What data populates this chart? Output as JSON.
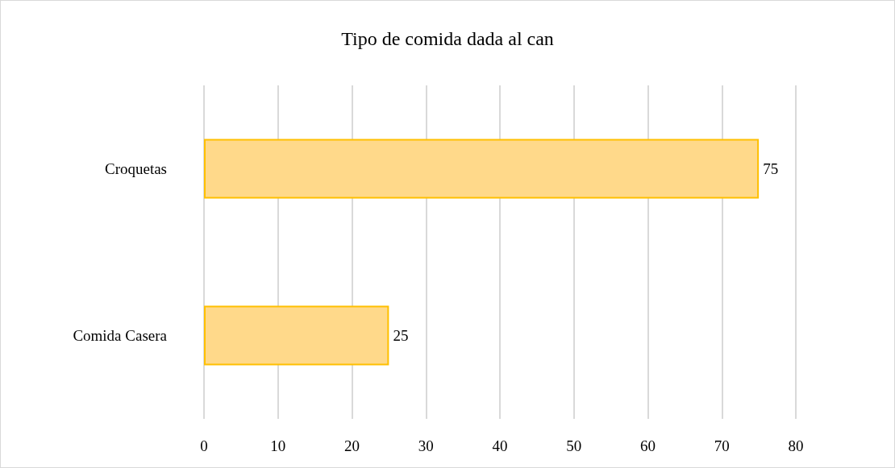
{
  "chart_data": {
    "type": "bar",
    "orientation": "horizontal",
    "title": "Tipo de comida dada al can",
    "categories": [
      "Croquetas",
      "Comida Casera"
    ],
    "values": [
      75,
      25
    ],
    "color": "#ffd98a",
    "xlim": [
      0,
      80
    ],
    "xticks": [
      0,
      10,
      20,
      30,
      40,
      50,
      60,
      70,
      80
    ],
    "grid": "x",
    "data_labels": true
  }
}
